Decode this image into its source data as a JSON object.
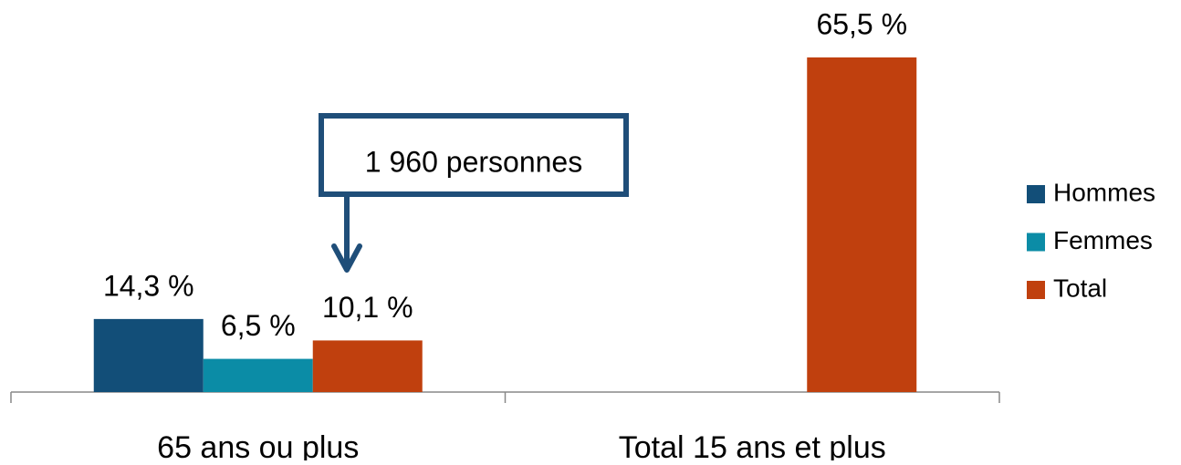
{
  "chart_data": {
    "type": "bar",
    "categories": [
      "65 ans ou plus",
      "Total 15 ans et plus"
    ],
    "series": [
      {
        "name": "Hommes",
        "color": "#124e78",
        "values": [
          14.3,
          null
        ],
        "value_labels": [
          "14,3 %",
          null
        ]
      },
      {
        "name": "Femmes",
        "color": "#0b8ca6",
        "values": [
          6.5,
          null
        ],
        "value_labels": [
          "6,5 %",
          null
        ]
      },
      {
        "name": "Total",
        "color": "#c0400e",
        "values": [
          10.1,
          65.5
        ],
        "value_labels": [
          "10,1 %",
          "65,5 %"
        ]
      }
    ],
    "annotation": "1 960 personnes",
    "legend": "right"
  }
}
